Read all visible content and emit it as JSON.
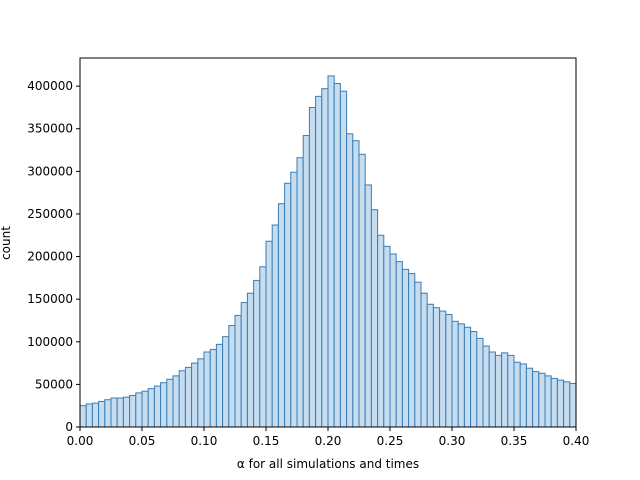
{
  "chart_data": {
    "type": "histogram",
    "xlabel": "α for all simulations and times",
    "ylabel": "count",
    "bins": [
      0,
      0.005,
      0.01,
      0.015,
      0.02,
      0.025,
      0.03,
      0.035,
      0.04,
      0.045,
      0.05,
      0.055,
      0.06,
      0.065,
      0.07,
      0.075,
      0.08,
      0.085,
      0.09,
      0.095,
      0.1,
      0.105,
      0.11,
      0.115,
      0.12,
      0.125,
      0.13,
      0.135,
      0.14,
      0.145,
      0.15,
      0.155,
      0.16,
      0.165,
      0.17,
      0.175,
      0.18,
      0.185,
      0.19,
      0.195,
      0.2,
      0.205,
      0.21,
      0.215,
      0.22,
      0.225,
      0.23,
      0.235,
      0.24,
      0.245,
      0.25,
      0.255,
      0.26,
      0.265,
      0.27,
      0.275,
      0.28,
      0.285,
      0.29,
      0.295,
      0.3,
      0.305,
      0.31,
      0.315,
      0.32,
      0.325,
      0.33,
      0.335,
      0.34,
      0.345,
      0.35,
      0.355,
      0.36,
      0.365,
      0.37,
      0.375,
      0.38,
      0.385,
      0.39,
      0.395,
      0.4
    ],
    "values": [
      25000,
      27000,
      28000,
      30000,
      32000,
      34000,
      34000,
      35000,
      37000,
      40000,
      42000,
      45000,
      48000,
      52000,
      56000,
      60000,
      66000,
      70000,
      75000,
      80000,
      88000,
      91000,
      97000,
      106000,
      119000,
      131000,
      146000,
      157000,
      172000,
      188000,
      218000,
      237000,
      262000,
      286000,
      299000,
      316000,
      342000,
      375000,
      388000,
      397000,
      412000,
      403000,
      394000,
      344000,
      336000,
      320000,
      284000,
      255000,
      225000,
      212000,
      203000,
      194000,
      185000,
      180000,
      170000,
      157000,
      144000,
      140000,
      136000,
      132000,
      124000,
      121000,
      117000,
      112000,
      104000,
      95000,
      88000,
      84000,
      87000,
      84000,
      76000,
      74000,
      69000,
      65000,
      63000,
      60000,
      57000,
      55000,
      53000,
      51000
    ],
    "color": "#c6dcef",
    "edgecolor": "#3a7db5",
    "xlim": [
      0,
      0.4
    ],
    "xticks": [
      {
        "value": 0,
        "label": "0.00"
      },
      {
        "value": 0.05,
        "label": "0.05"
      },
      {
        "value": 0.1,
        "label": "0.10"
      },
      {
        "value": 0.15,
        "label": "0.15"
      },
      {
        "value": 0.2,
        "label": "0.20"
      },
      {
        "value": 0.25,
        "label": "0.25"
      },
      {
        "value": 0.3,
        "label": "0.30"
      },
      {
        "value": 0.35,
        "label": "0.35"
      },
      {
        "value": 0.4,
        "label": "0.40"
      }
    ],
    "ylim": [
      0,
      433000
    ],
    "yticks": [
      0,
      50000,
      100000,
      150000,
      200000,
      250000,
      300000,
      350000,
      400000
    ]
  }
}
